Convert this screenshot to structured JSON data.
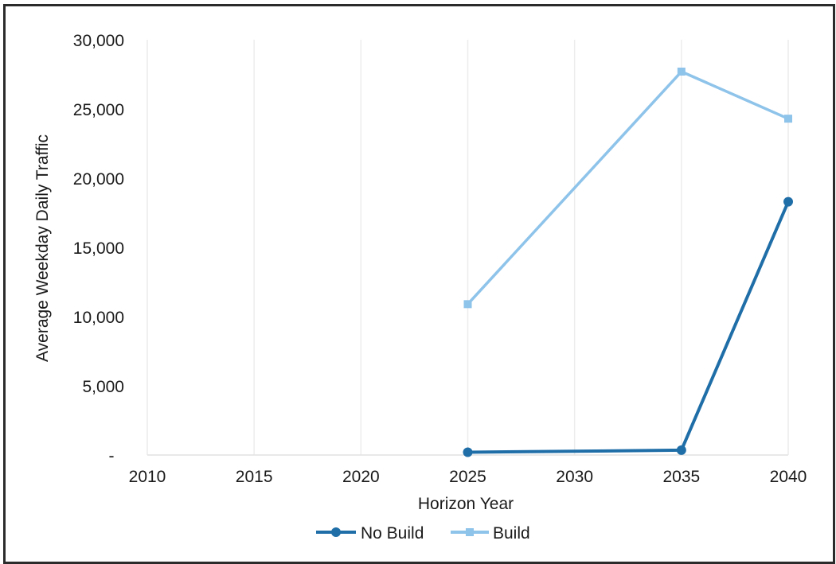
{
  "chart_data": {
    "type": "line",
    "xlabel": "Horizon Year",
    "ylabel": "Average Weekday Daily Traffic",
    "xlim": [
      2010,
      2040
    ],
    "ylim": [
      0,
      30000
    ],
    "xticks": [
      "2010",
      "2015",
      "2020",
      "2025",
      "2030",
      "2035",
      "2040"
    ],
    "yticks": [
      "-",
      "5,000",
      "10,000",
      "15,000",
      "20,000",
      "25,000",
      "30,000"
    ],
    "grid": "vertical",
    "legend_position": "bottom",
    "series": [
      {
        "name": "No Build",
        "color": "#1f6ea8",
        "points": [
          {
            "x": 2025,
            "y": 200
          },
          {
            "x": 2035,
            "y": 350
          },
          {
            "x": 2040,
            "y": 18300
          }
        ]
      },
      {
        "name": "Build",
        "color": "#8ec3ea",
        "points": [
          {
            "x": 2025,
            "y": 10900
          },
          {
            "x": 2035,
            "y": 27700
          },
          {
            "x": 2040,
            "y": 24300
          }
        ]
      }
    ]
  }
}
